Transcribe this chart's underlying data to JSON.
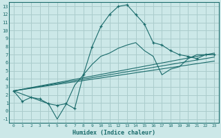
{
  "title": "",
  "xlabel": "Humidex (Indice chaleur)",
  "ylabel": "",
  "bg_color": "#cce8e8",
  "grid_color": "#aacccc",
  "line_color": "#1a6b6b",
  "xlim": [
    -0.5,
    23.5
  ],
  "ylim": [
    -1.5,
    13.5
  ],
  "xticks": [
    0,
    1,
    2,
    3,
    4,
    5,
    6,
    7,
    8,
    9,
    10,
    11,
    12,
    13,
    14,
    15,
    16,
    17,
    18,
    19,
    20,
    21,
    22,
    23
  ],
  "yticks": [
    -1,
    0,
    1,
    2,
    3,
    4,
    5,
    6,
    7,
    8,
    9,
    10,
    11,
    12,
    13
  ],
  "series_main": {
    "x": [
      0,
      1,
      2,
      3,
      4,
      5,
      6,
      7,
      8,
      9,
      10,
      11,
      12,
      13,
      14,
      15,
      16,
      17,
      18,
      19,
      20,
      21,
      22,
      23
    ],
    "y": [
      2.5,
      1.2,
      1.7,
      1.5,
      0.9,
      0.7,
      0.9,
      0.3,
      4.5,
      8.0,
      10.5,
      12.0,
      13.0,
      13.2,
      12.0,
      10.8,
      8.5,
      8.2,
      7.5,
      7.0,
      6.8,
      6.5,
      7.0,
      7.0
    ]
  },
  "series_lower": {
    "x": [
      0,
      4,
      5,
      6,
      7,
      8,
      9,
      10,
      11,
      12,
      13,
      14,
      15,
      16,
      17,
      18,
      19,
      20,
      21,
      22,
      23
    ],
    "y": [
      2.5,
      0.9,
      -1.0,
      0.8,
      3.2,
      4.5,
      5.8,
      6.8,
      7.2,
      7.8,
      8.2,
      8.5,
      7.5,
      6.8,
      4.5,
      5.2,
      5.5,
      6.5,
      7.0,
      7.0,
      7.0
    ]
  },
  "lines_fan": [
    {
      "x": [
        0,
        23
      ],
      "y": [
        2.5,
        7.2
      ]
    },
    {
      "x": [
        0,
        23
      ],
      "y": [
        2.5,
        6.7
      ]
    },
    {
      "x": [
        0,
        23
      ],
      "y": [
        2.5,
        6.2
      ]
    }
  ]
}
